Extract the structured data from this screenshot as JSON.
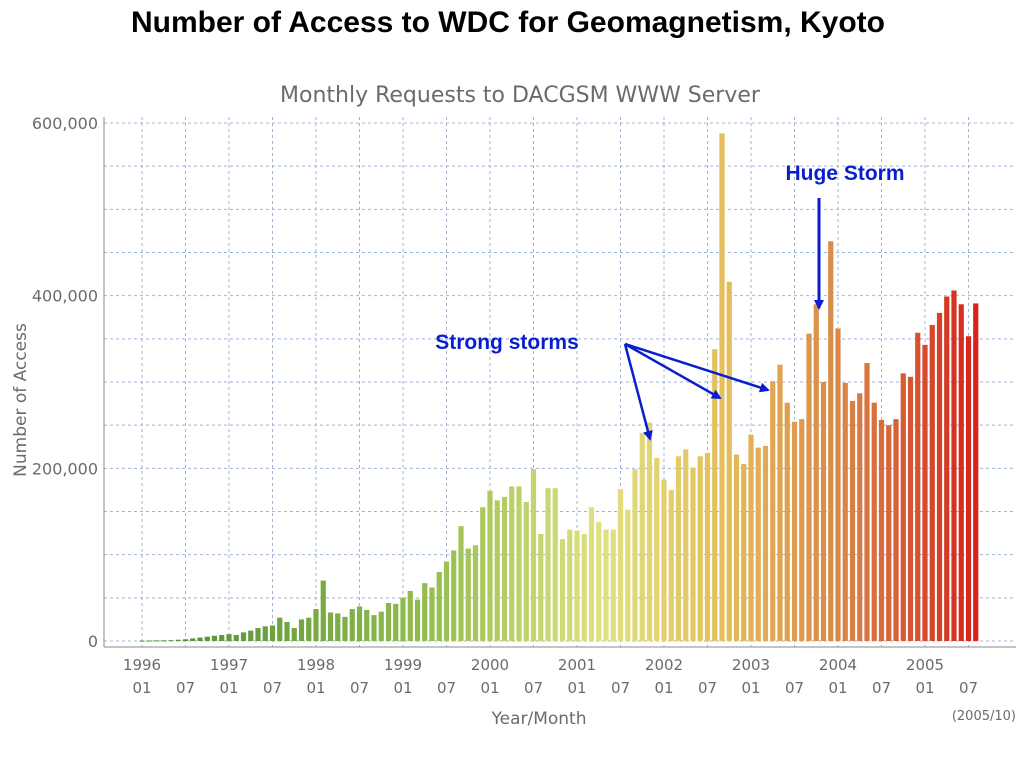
{
  "slide_title": "Number of Access to WDC for Geomagnetism, Kyoto",
  "chart_data": {
    "type": "bar",
    "title": "Monthly Requests to DACGSM WWW Server",
    "xlabel": "Year/Month",
    "ylabel": "Number of Access",
    "ylim": [
      0,
      600000
    ],
    "y_ticks": [
      "0",
      "200,000",
      "400,000",
      "600,000"
    ],
    "x_tick_labels": [
      {
        "year": "1996",
        "month": "01"
      },
      {
        "year": "",
        "month": "07"
      },
      {
        "year": "1997",
        "month": "01"
      },
      {
        "year": "",
        "month": "07"
      },
      {
        "year": "1998",
        "month": "01"
      },
      {
        "year": "",
        "month": "07"
      },
      {
        "year": "1999",
        "month": "01"
      },
      {
        "year": "",
        "month": "07"
      },
      {
        "year": "2000",
        "month": "01"
      },
      {
        "year": "",
        "month": "07"
      },
      {
        "year": "2001",
        "month": "01"
      },
      {
        "year": "",
        "month": "07"
      },
      {
        "year": "2002",
        "month": "01"
      },
      {
        "year": "",
        "month": "07"
      },
      {
        "year": "2003",
        "month": "01"
      },
      {
        "year": "",
        "month": "07"
      },
      {
        "year": "2004",
        "month": "01"
      },
      {
        "year": "",
        "month": "07"
      },
      {
        "year": "2005",
        "month": "01"
      },
      {
        "year": "",
        "month": "07"
      }
    ],
    "start": "1996-01",
    "grid": true,
    "note": "(2005/10)",
    "values": [
      500,
      600,
      700,
      800,
      1000,
      1500,
      2000,
      3000,
      4000,
      5000,
      6000,
      7000,
      8000,
      7000,
      10000,
      12000,
      15000,
      17000,
      18000,
      27000,
      22000,
      15000,
      25000,
      27000,
      37000,
      70000,
      33000,
      32000,
      28000,
      37000,
      40000,
      36000,
      30000,
      34000,
      44000,
      43000,
      50000,
      58000,
      48000,
      67000,
      62000,
      80000,
      92000,
      105000,
      133000,
      107000,
      111000,
      155000,
      174000,
      163000,
      167000,
      179000,
      179000,
      161000,
      199000,
      124000,
      177000,
      177000,
      118000,
      129000,
      128000,
      124000,
      155000,
      138000,
      129000,
      129000,
      176000,
      152000,
      199000,
      241000,
      253000,
      212000,
      187000,
      175000,
      214000,
      222000,
      201000,
      214000,
      218000,
      338000,
      588000,
      416000,
      216000,
      205000,
      239000,
      224000,
      226000,
      301000,
      320000,
      276000,
      254000,
      257000,
      356000,
      390000,
      300000,
      463000,
      362000,
      299000,
      278000,
      287000,
      322000,
      276000,
      256000,
      250000,
      257000,
      310000,
      306000,
      357000,
      343000,
      366000,
      380000,
      399000,
      406000,
      390000,
      353000,
      391000
    ]
  },
  "annotations": {
    "huge_storm": "Huge Storm",
    "strong_storms": "Strong storms"
  },
  "colors": {
    "bar_start": "#5a9a3c",
    "bar_mid_green": "#a8c85a",
    "bar_yellow": "#e4e38a",
    "bar_orange": "#d98a4a",
    "bar_end": "#d8261e",
    "annotation": "#0a1ed0",
    "grid": "#9fb4d8"
  }
}
